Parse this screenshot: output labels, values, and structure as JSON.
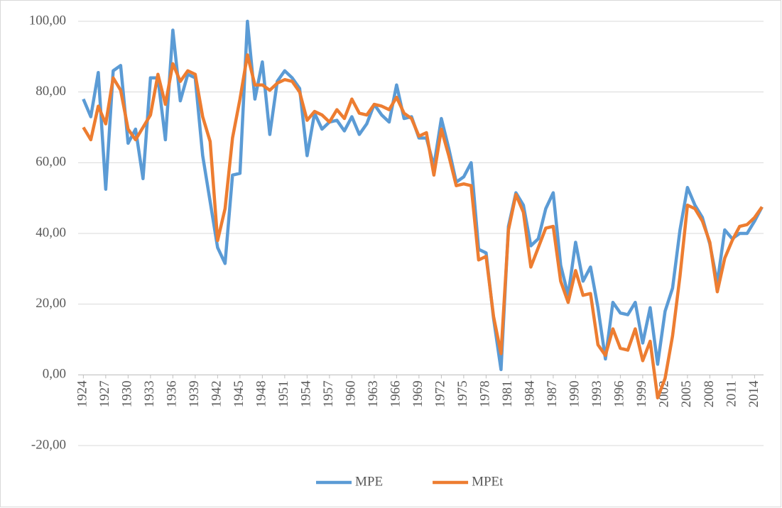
{
  "chart_data": {
    "type": "line",
    "x": [
      1924,
      1925,
      1926,
      1927,
      1928,
      1929,
      1930,
      1931,
      1932,
      1933,
      1934,
      1935,
      1936,
      1937,
      1938,
      1939,
      1940,
      1941,
      1942,
      1943,
      1944,
      1945,
      1946,
      1947,
      1948,
      1949,
      1950,
      1951,
      1952,
      1953,
      1954,
      1955,
      1956,
      1957,
      1958,
      1959,
      1960,
      1961,
      1962,
      1963,
      1964,
      1965,
      1966,
      1967,
      1968,
      1969,
      1970,
      1971,
      1972,
      1973,
      1974,
      1975,
      1976,
      1977,
      1978,
      1979,
      1980,
      1981,
      1982,
      1983,
      1984,
      1985,
      1986,
      1987,
      1988,
      1989,
      1990,
      1991,
      1992,
      1993,
      1994,
      1995,
      1996,
      1997,
      1998,
      1999,
      2000,
      2001,
      2002,
      2003,
      2004,
      2005,
      2006,
      2007,
      2008,
      2009,
      2010,
      2011,
      2012,
      2013,
      2014,
      2015
    ],
    "series": [
      {
        "name": "MPE",
        "color": "#5b9bd5",
        "values": [
          78,
          73,
          85.5,
          52.5,
          86,
          87.5,
          65.5,
          69.5,
          55.5,
          84,
          84,
          66.5,
          97.5,
          77.5,
          85,
          84,
          62,
          49,
          36,
          31.5,
          56.5,
          57,
          100,
          78,
          88.5,
          68,
          83,
          86,
          84,
          81,
          62,
          74,
          69.5,
          71.5,
          72,
          69,
          73,
          68,
          71,
          76.5,
          73.5,
          71.5,
          82,
          72.5,
          73,
          67,
          67,
          59,
          72.5,
          64,
          54.5,
          56,
          60,
          35.5,
          34.5,
          16,
          1.5,
          42,
          51.5,
          48,
          36.5,
          38.5,
          47,
          51.5,
          31,
          22.5,
          37.5,
          26.5,
          30.5,
          19,
          4.5,
          20.5,
          17.5,
          17,
          20.5,
          9,
          19,
          3,
          18,
          24.5,
          41,
          53,
          48,
          44.5,
          37,
          26,
          41,
          38.5,
          40,
          40,
          43.5,
          47.5
        ]
      },
      {
        "name": "MPEt",
        "color": "#ed7d31",
        "values": [
          70,
          66.5,
          76,
          71,
          84,
          80.5,
          69.5,
          66.5,
          70,
          73.5,
          85,
          76.5,
          88,
          83,
          86,
          85,
          73,
          66,
          38,
          47,
          67,
          78,
          90.5,
          82,
          82,
          80.5,
          82.5,
          83.5,
          83,
          80,
          72,
          74.5,
          73.5,
          71.5,
          75,
          72.5,
          78,
          74,
          73.5,
          76.5,
          76,
          75,
          78.5,
          74,
          72.5,
          67.5,
          68.5,
          56.5,
          69.5,
          62,
          53.5,
          54,
          53.5,
          32.5,
          33.5,
          16.5,
          6,
          41,
          51,
          46,
          30.5,
          36,
          41.5,
          42,
          26.5,
          20.5,
          29.5,
          22.5,
          23,
          8.5,
          5.5,
          13,
          7.5,
          7,
          13,
          4,
          9.5,
          -6.5,
          -1,
          11,
          28,
          48,
          47,
          43.5,
          37.5,
          23.5,
          33,
          38,
          42,
          42.5,
          44.5,
          47.5
        ]
      }
    ],
    "xlim": [
      1923.3,
      2015.2
    ],
    "xticks": [
      1924,
      1927,
      1930,
      1933,
      1936,
      1939,
      1942,
      1945,
      1948,
      1951,
      1954,
      1957,
      1960,
      1963,
      1966,
      1969,
      1972,
      1975,
      1978,
      1981,
      1984,
      1987,
      1990,
      1993,
      1996,
      1999,
      2002,
      2005,
      2008,
      2011,
      2014
    ],
    "ylim": [
      -20,
      100
    ],
    "yticks": [
      {
        "value": -20,
        "label": "-20,00"
      },
      {
        "value": 0,
        "label": "0,00"
      },
      {
        "value": 20,
        "label": "20,00"
      },
      {
        "value": 40,
        "label": "40,00"
      },
      {
        "value": 60,
        "label": "60,00"
      },
      {
        "value": 80,
        "label": "80,00"
      },
      {
        "value": 100,
        "label": "100,00"
      }
    ],
    "grid": true,
    "legend": "bottom"
  }
}
